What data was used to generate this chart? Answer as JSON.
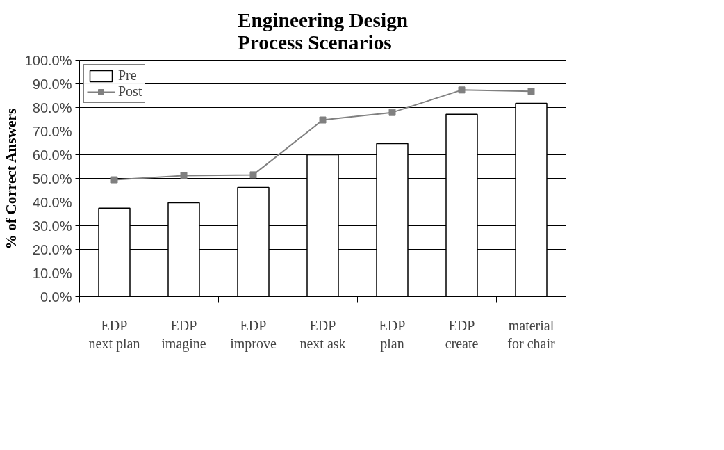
{
  "chart_data": {
    "type": "bar",
    "title": "Engineering Design\nProcess Scenarios",
    "ylabel": "% of Correct Answers",
    "categories": [
      "EDP\nnext plan",
      "EDP\nimagine",
      "EDP\nimprove",
      "EDP\nnext ask",
      "EDP\nplan",
      "EDP\ncreate",
      "material\nfor chair"
    ],
    "series": [
      {
        "name": "Pre",
        "type": "bar",
        "color": "#ffffff",
        "values": [
          37.4,
          39.7,
          46.2,
          60.0,
          64.7,
          77.1,
          81.8
        ]
      },
      {
        "name": "Post",
        "type": "line",
        "color": "#808080",
        "marker": "square",
        "values": [
          49.4,
          51.2,
          51.5,
          74.7,
          77.9,
          87.4,
          86.8
        ]
      }
    ],
    "ylim": [
      0,
      100
    ],
    "yticks": [
      {
        "value": 0,
        "label": "0.0%"
      },
      {
        "value": 10,
        "label": "10.0%"
      },
      {
        "value": 20,
        "label": "20.0%"
      },
      {
        "value": 30,
        "label": "30.0%"
      },
      {
        "value": 40,
        "label": "40.0%"
      },
      {
        "value": 50,
        "label": "50.0%"
      },
      {
        "value": 60,
        "label": "60.0%"
      },
      {
        "value": 70,
        "label": "70.0%"
      },
      {
        "value": 80,
        "label": "80.0%"
      },
      {
        "value": 90,
        "label": "90.0%"
      },
      {
        "value": 100,
        "label": "100.0%"
      }
    ],
    "grid": "y",
    "legend": "top left"
  }
}
